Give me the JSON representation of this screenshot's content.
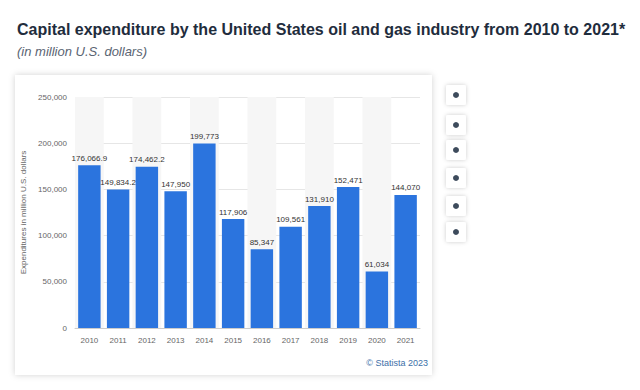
{
  "chart_data": {
    "type": "bar",
    "title": "Capital expenditure by the United States oil and gas industry from 2010 to 2021*",
    "subtitle": "(in million U.S. dollars)",
    "y_label": "Expenditures in million U.S. dollars",
    "annotations": [
      "© Statista 2023"
    ],
    "categories": [
      "2010",
      "2011",
      "2012",
      "2013",
      "2014",
      "2015",
      "2016",
      "2017",
      "2018",
      "2019",
      "2020",
      "2021"
    ],
    "values": [
      176066.9,
      149834.2,
      174462.2,
      147950,
      199773,
      117906,
      85347,
      109561,
      131910,
      152471,
      61034,
      144070
    ],
    "value_labels": [
      "176,066.9",
      "149,834.2",
      "174,462.2",
      "147,950",
      "199,773",
      "117,906",
      "85,347",
      "109,561",
      "131,910",
      "152,471",
      "61,034",
      "144,070"
    ],
    "color": "#2b74de",
    "ylim": [
      0,
      250000
    ],
    "yticks": [
      0,
      {
        "value": 50000,
        "label": "50,000"
      },
      {
        "value": 100000,
        "label": "100,000"
      },
      {
        "value": 150000,
        "label": "150,000"
      },
      {
        "value": 200000,
        "label": "200,000"
      },
      {
        "value": 250000,
        "label": "250,000"
      }
    ],
    "grid": true,
    "data_labels": true
  }
}
